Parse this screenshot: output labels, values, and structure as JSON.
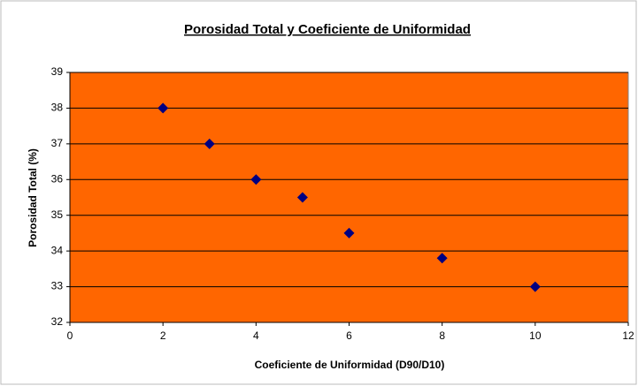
{
  "chart_data": {
    "type": "scatter",
    "title": "Porosidad Total y Coeficiente de Uniformidad",
    "x_label": "Coeficiente de Uniformidad (D90/D10)",
    "y_label": "Porosidad Total (%)",
    "series": [
      {
        "color": "#000080",
        "x": [
          2,
          3,
          4,
          5,
          6,
          8,
          10
        ],
        "values": [
          38,
          37,
          36,
          35.5,
          34.5,
          33.8,
          33
        ]
      }
    ],
    "xlim": [
      0,
      12
    ],
    "xticks": [
      0,
      2,
      4,
      6,
      8,
      10,
      12
    ],
    "ylim": [
      32,
      39
    ],
    "yticks": [
      32,
      33,
      34,
      35,
      36,
      37,
      38,
      39
    ],
    "grid": true,
    "plot_background": "#ff6600"
  }
}
